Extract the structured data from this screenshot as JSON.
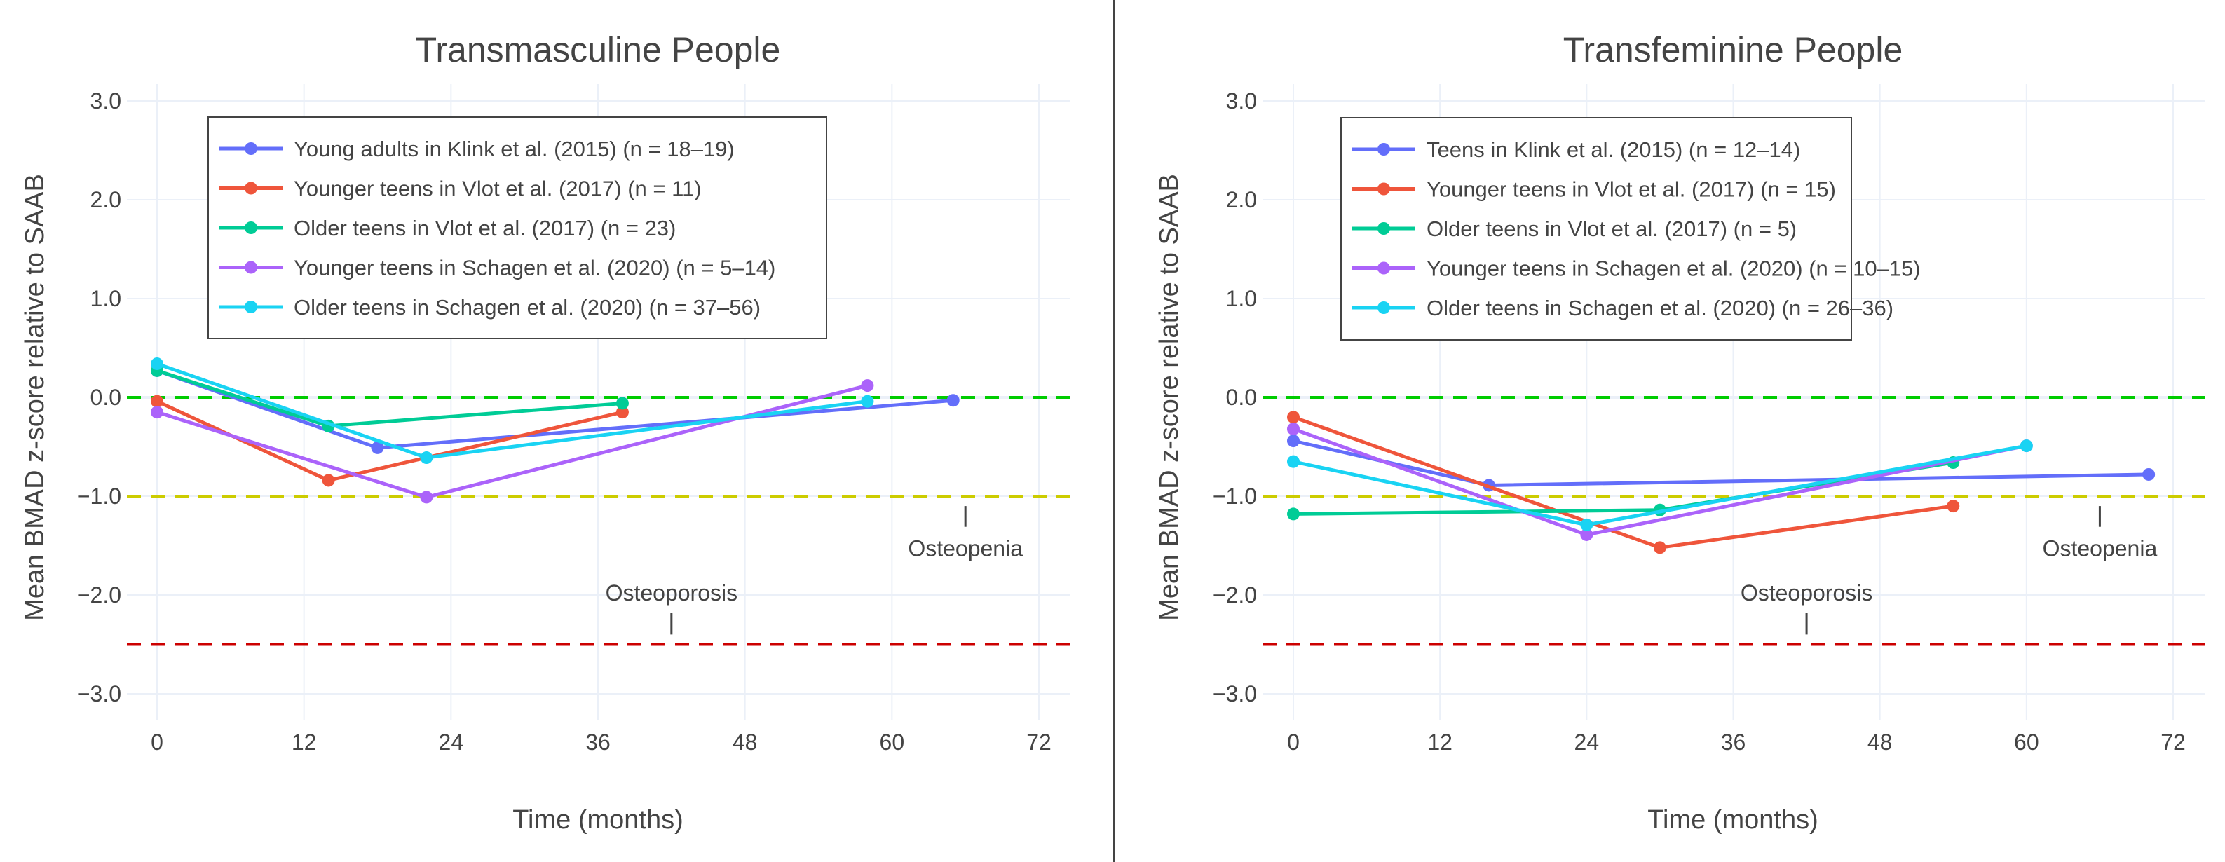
{
  "chart_data": [
    {
      "type": "line",
      "title": "Transmasculine People",
      "xlabel": "Time (months)",
      "ylabel": "Mean BMAD z-score relative to SAAB",
      "xlim": [
        0,
        72
      ],
      "ylim": [
        -3,
        3
      ],
      "xticks": [
        "0",
        "12",
        "24",
        "36",
        "48",
        "60",
        "72"
      ],
      "yticks": [
        "3.0",
        "2.0",
        "1.0",
        "0.0",
        "−1.0",
        "−2.0",
        "−3.0"
      ],
      "grid": true,
      "legend_position": "top-left",
      "series": [
        {
          "name": "Young adults in Klink et al. (2015) (n = 18–19)",
          "color": "#636efa",
          "x": [
            0,
            18,
            65
          ],
          "y": [
            0.27,
            -0.51,
            -0.03
          ]
        },
        {
          "name": "Younger teens in Vlot et al. (2017) (n = 11)",
          "color": "#ef553b",
          "x": [
            0,
            14,
            38
          ],
          "y": [
            -0.04,
            -0.84,
            -0.15
          ]
        },
        {
          "name": "Older teens in Vlot et al. (2017) (n = 23)",
          "color": "#00cc96",
          "x": [
            0,
            14,
            38
          ],
          "y": [
            0.27,
            -0.29,
            -0.06
          ]
        },
        {
          "name": "Younger teens in Schagen et al. (2020) (n = 5–14)",
          "color": "#ab63fa",
          "x": [
            0,
            22,
            58
          ],
          "y": [
            -0.15,
            -1.01,
            0.12
          ]
        },
        {
          "name": "Older teens in Schagen et al. (2020) (n = 37–56)",
          "color": "#19d3f3",
          "x": [
            0,
            22,
            58
          ],
          "y": [
            0.34,
            -0.61,
            -0.04
          ]
        }
      ],
      "reference_lines": [
        {
          "y": 0,
          "color": "#00cc00"
        },
        {
          "y": -1,
          "color": "#cccc00"
        },
        {
          "y": -2.5,
          "color": "#cc0000"
        }
      ],
      "annotations": [
        {
          "text": "Osteopenia",
          "x": 66,
          "y": -1.53,
          "tick_y": [
            -1.1,
            -1.31
          ]
        },
        {
          "text": "Osteoporosis",
          "x": 42,
          "y": -1.98,
          "tick_y": [
            -2.18,
            -2.4
          ]
        }
      ]
    },
    {
      "type": "line",
      "title": "Transfeminine People",
      "xlabel": "Time (months)",
      "ylabel": "Mean BMAD z-score relative to SAAB",
      "xlim": [
        0,
        72
      ],
      "ylim": [
        -3,
        3
      ],
      "xticks": [
        "0",
        "12",
        "24",
        "36",
        "48",
        "60",
        "72"
      ],
      "yticks": [
        "3.0",
        "2.0",
        "1.0",
        "0.0",
        "−1.0",
        "−2.0",
        "−3.0"
      ],
      "grid": true,
      "legend_position": "top-left",
      "series": [
        {
          "name": "Teens in Klink et al. (2015) (n = 12–14)",
          "color": "#636efa",
          "x": [
            0,
            16,
            70
          ],
          "y": [
            -0.44,
            -0.89,
            -0.78
          ]
        },
        {
          "name": "Younger teens in Vlot et al. (2017) (n = 15)",
          "color": "#ef553b",
          "x": [
            0,
            30,
            54
          ],
          "y": [
            -0.2,
            -1.52,
            -1.1
          ]
        },
        {
          "name": "Older teens in Vlot et al. (2017) (n = 5)",
          "color": "#00cc96",
          "x": [
            0,
            30,
            54
          ],
          "y": [
            -1.18,
            -1.14,
            -0.66
          ]
        },
        {
          "name": "Younger teens in Schagen et al. (2020) (n = 10–15)",
          "color": "#ab63fa",
          "x": [
            0,
            24,
            60
          ],
          "y": [
            -0.32,
            -1.39,
            -0.49
          ]
        },
        {
          "name": "Older teens in Schagen et al. (2020) (n = 26–36)",
          "color": "#19d3f3",
          "x": [
            0,
            24,
            60
          ],
          "y": [
            -0.65,
            -1.29,
            -0.49
          ]
        }
      ],
      "reference_lines": [
        {
          "y": 0,
          "color": "#00cc00"
        },
        {
          "y": -1,
          "color": "#cccc00"
        },
        {
          "y": -2.5,
          "color": "#cc0000"
        }
      ],
      "annotations": [
        {
          "text": "Osteopenia",
          "x": 66,
          "y": -1.53,
          "tick_y": [
            -1.1,
            -1.31
          ]
        },
        {
          "text": "Osteoporosis",
          "x": 42,
          "y": -1.98,
          "tick_y": [
            -2.18,
            -2.4
          ]
        }
      ]
    }
  ]
}
